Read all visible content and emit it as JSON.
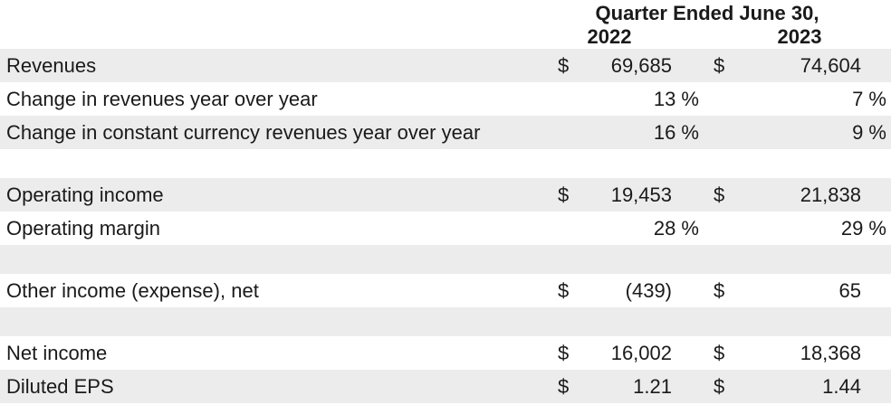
{
  "header": {
    "title": "Quarter Ended June 30,",
    "years": [
      "2022",
      "2023"
    ]
  },
  "rows": [
    {
      "label": "Revenues",
      "cur1": "$",
      "val1": "69,685",
      "cur2": "$",
      "val2": "74,604"
    },
    {
      "label": "Change in revenues year over year",
      "pct1": "13 %",
      "pct2": "7 %"
    },
    {
      "label": "Change in constant currency revenues year over year",
      "pct1": "16 %",
      "pct2": "9 %"
    },
    {
      "label": "Operating income",
      "cur1": "$",
      "val1": "19,453",
      "cur2": "$",
      "val2": "21,838"
    },
    {
      "label": "Operating margin",
      "pct1": "28 %",
      "pct2": "29 %"
    },
    {
      "label": "Other income (expense), net",
      "cur1": "$",
      "val1": "(439)",
      "cur2": "$",
      "val2": "65"
    },
    {
      "label": "Net income",
      "cur1": "$",
      "val1": "16,002",
      "cur2": "$",
      "val2": "18,368"
    },
    {
      "label": "Diluted EPS",
      "cur1": "$",
      "val1": "1.21",
      "cur2": "$",
      "val2": "1.44"
    }
  ]
}
